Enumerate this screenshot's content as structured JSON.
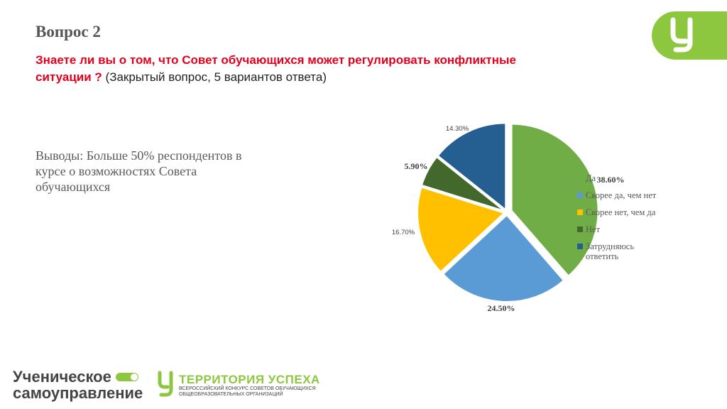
{
  "header": {
    "title": "Вопрос 2",
    "question_bold": "Знаете ли вы о том, что Совет обучающихся может регулировать конфликтные ситуации ?",
    "question_note": " (Закрытый вопрос, 5 вариантов ответа)"
  },
  "conclusion": "Выводы: Больше 50% респондентов в курсе о возможностях Совета обучающихся",
  "colors": {
    "accent": "#8dc63f",
    "question": "#e3001b",
    "slices": [
      "#70ad47",
      "#5b9bd5",
      "#ffc000",
      "#43682b",
      "#255e91"
    ]
  },
  "chart_data": {
    "type": "pie",
    "categories": [
      "Да",
      "Скорее да, чем нет",
      "Скорее нет, чем да",
      "Нет",
      "Затрудняюсь ответить"
    ],
    "values": [
      38.6,
      24.5,
      16.7,
      5.9,
      14.3
    ],
    "data_labels": [
      "38.60%",
      "24.50%",
      "16.70%",
      "5.90%",
      "14.30%"
    ],
    "legend": "right",
    "legend_labels": [
      "Да",
      "Скорее да, чем нет",
      "Скорее нет, чем да",
      "Нет",
      "Затрудняюсь ответить"
    ]
  },
  "footer": {
    "left_line1": "Ученическое",
    "left_line2": "самоуправление",
    "right_title": "ТЕРРИТОРИЯ УСПЕХА",
    "right_sub1": "Всероссийский конкурс советов обучающихся",
    "right_sub2": "общеобразовательных организаций"
  }
}
